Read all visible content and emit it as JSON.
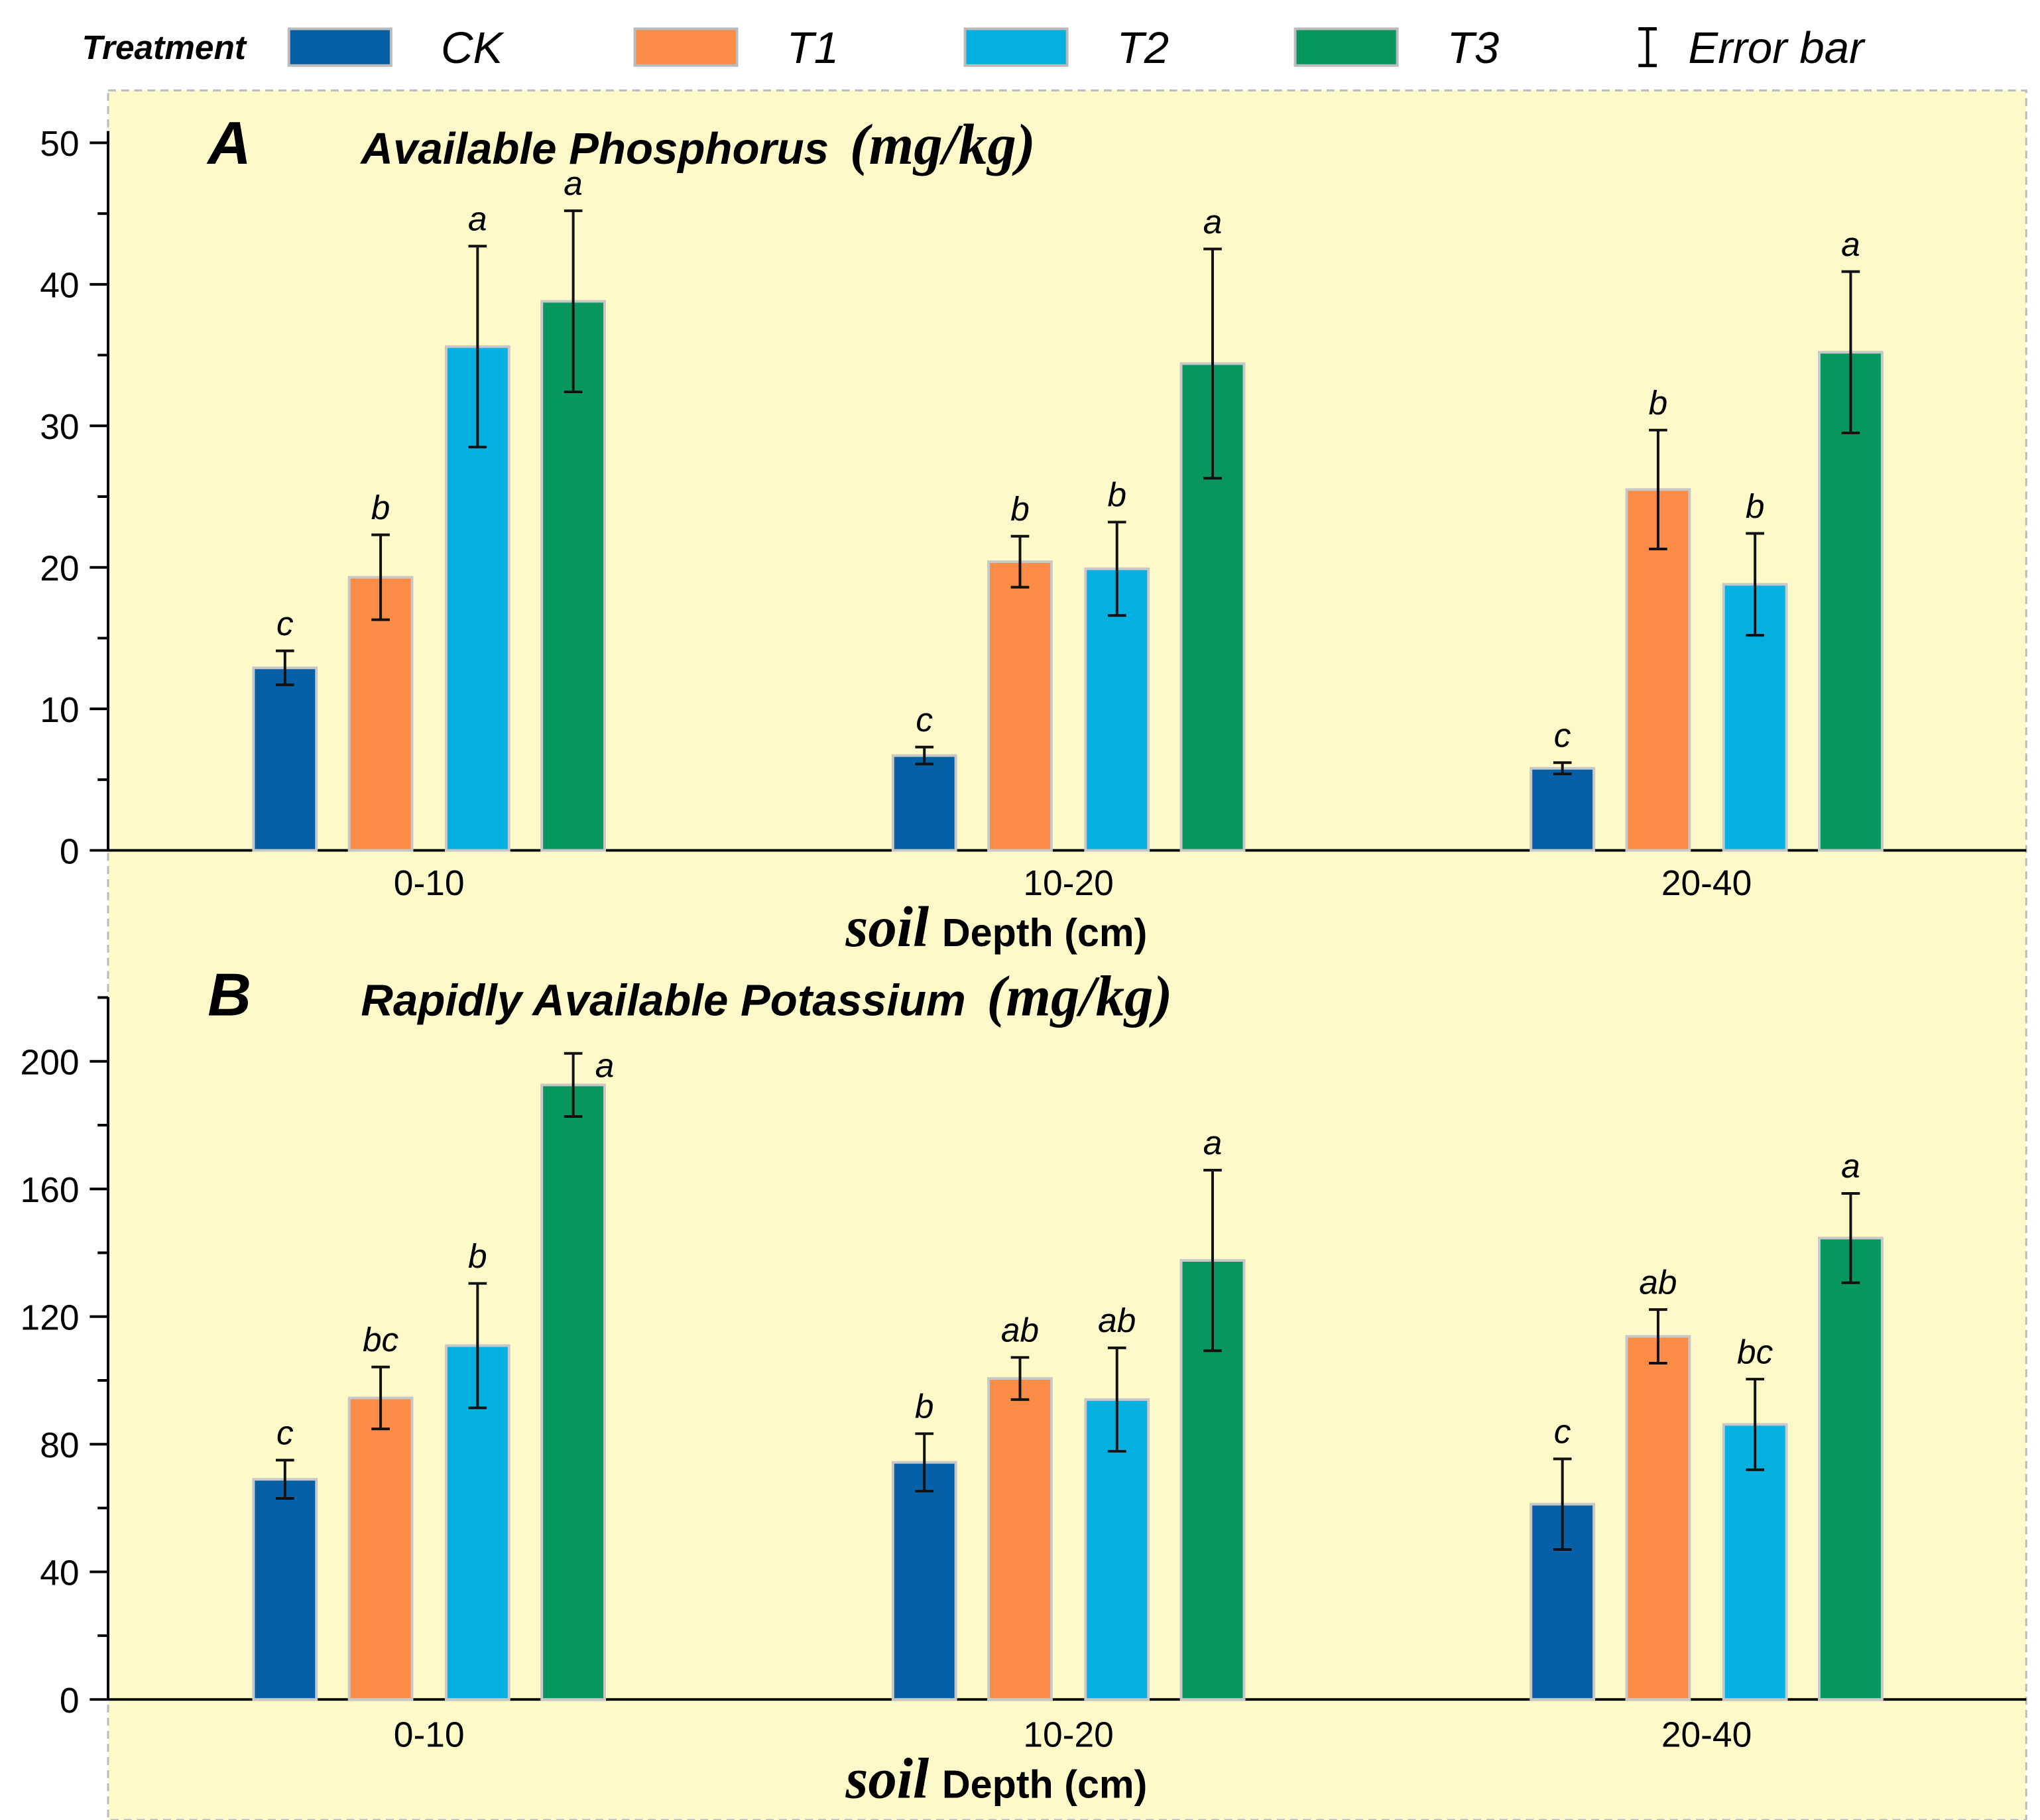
{
  "legend": {
    "title": "Treatment",
    "items": [
      {
        "label": "CK",
        "color": "#0660a6"
      },
      {
        "label": "T1",
        "color": "#fb8c45"
      },
      {
        "label": "T2",
        "color": "#04b0e0"
      },
      {
        "label": "T3",
        "color": "#07975e"
      }
    ],
    "error_label": "Error bar"
  },
  "background_color": "#fef9c8",
  "chart_data": [
    {
      "type": "bar",
      "panel": "A",
      "title": "Available Phosphorus",
      "unit": "(mg/kg)",
      "xlabel_prefix": "soil",
      "xlabel": "Depth (cm)",
      "categories": [
        "0-10",
        "10-20",
        "20-40"
      ],
      "ylim": [
        0,
        50
      ],
      "yticks": [
        0,
        10,
        20,
        30,
        40,
        50
      ],
      "series": [
        {
          "name": "CK",
          "values": [
            12.9,
            6.7,
            5.8
          ],
          "errors": [
            1.2,
            0.6,
            0.4
          ],
          "letters": [
            "c",
            "c",
            "c"
          ]
        },
        {
          "name": "T1",
          "values": [
            19.3,
            20.4,
            25.5
          ],
          "errors": [
            3.0,
            1.8,
            4.2
          ],
          "letters": [
            "b",
            "b",
            "b"
          ]
        },
        {
          "name": "T2",
          "values": [
            35.6,
            19.9,
            18.8
          ],
          "errors": [
            7.1,
            3.3,
            3.6
          ],
          "letters": [
            "a",
            "b",
            "b"
          ]
        },
        {
          "name": "T3",
          "values": [
            38.8,
            34.4,
            35.2
          ],
          "errors": [
            6.4,
            8.1,
            5.7
          ],
          "letters": [
            "a",
            "a",
            "a"
          ]
        }
      ]
    },
    {
      "type": "bar",
      "panel": "B",
      "title": "Rapidly Available Potassium",
      "unit": "(mg/kg)",
      "xlabel_prefix": "soil",
      "xlabel": "Depth (cm)",
      "categories": [
        "0-10",
        "10-20",
        "20-40"
      ],
      "ylim": [
        0,
        220
      ],
      "yticks": [
        0,
        40,
        80,
        120,
        160,
        200
      ],
      "series": [
        {
          "name": "CK",
          "values": [
            69,
            74.3,
            61.2
          ],
          "errors": [
            6,
            9,
            14.2
          ],
          "letters": [
            "c",
            "b",
            "c"
          ]
        },
        {
          "name": "T1",
          "values": [
            94.5,
            100.6,
            113.8
          ],
          "errors": [
            9.7,
            6.6,
            8.4
          ],
          "letters": [
            "bc",
            "ab",
            "ab"
          ]
        },
        {
          "name": "T2",
          "values": [
            110.9,
            94,
            86.2
          ],
          "errors": [
            19.5,
            16.2,
            14.2
          ],
          "letters": [
            "b",
            "ab",
            "bc"
          ]
        },
        {
          "name": "T3",
          "values": [
            192.6,
            137.6,
            144.6
          ],
          "errors": [
            9.9,
            28.3,
            14
          ],
          "letters": [
            "a",
            "a",
            "a"
          ]
        }
      ]
    }
  ]
}
